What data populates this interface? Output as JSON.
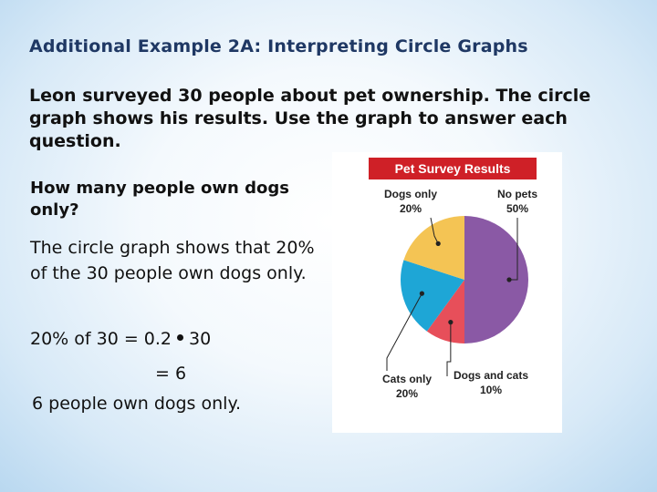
{
  "slide": {
    "title": "Additional Example 2A: Interpreting Circle Graphs",
    "intro": "Leon surveyed 30 people about pet ownership. The circle graph shows his results. Use the graph to answer each question.",
    "question": "How many people own dogs only?",
    "answer": "The circle graph shows that 20% of the 30 people own dogs only.",
    "eq1_left": "20% of 30 = 0.2",
    "eq1_right": "30",
    "eq2": "= 6",
    "conclusion": "6 people own dogs only."
  },
  "colors": {
    "title": "#1f3864",
    "header_bg": "#cf2027",
    "no_pets": "#8a59a5",
    "dogs_only": "#f4c454",
    "cats_only": "#1ea6d6",
    "dogs_and_cats": "#e74f5a"
  },
  "chart_data": {
    "type": "pie",
    "title": "Pet Survey Results",
    "slices": [
      {
        "label": "No pets",
        "value": 50,
        "value_label": "50%"
      },
      {
        "label": "Dogs and cats",
        "value": 10,
        "value_label": "10%"
      },
      {
        "label": "Cats only",
        "value": 20,
        "value_label": "20%"
      },
      {
        "label": "Dogs only",
        "value": 20,
        "value_label": "20%"
      }
    ],
    "start": "top",
    "direction": "clockwise"
  }
}
